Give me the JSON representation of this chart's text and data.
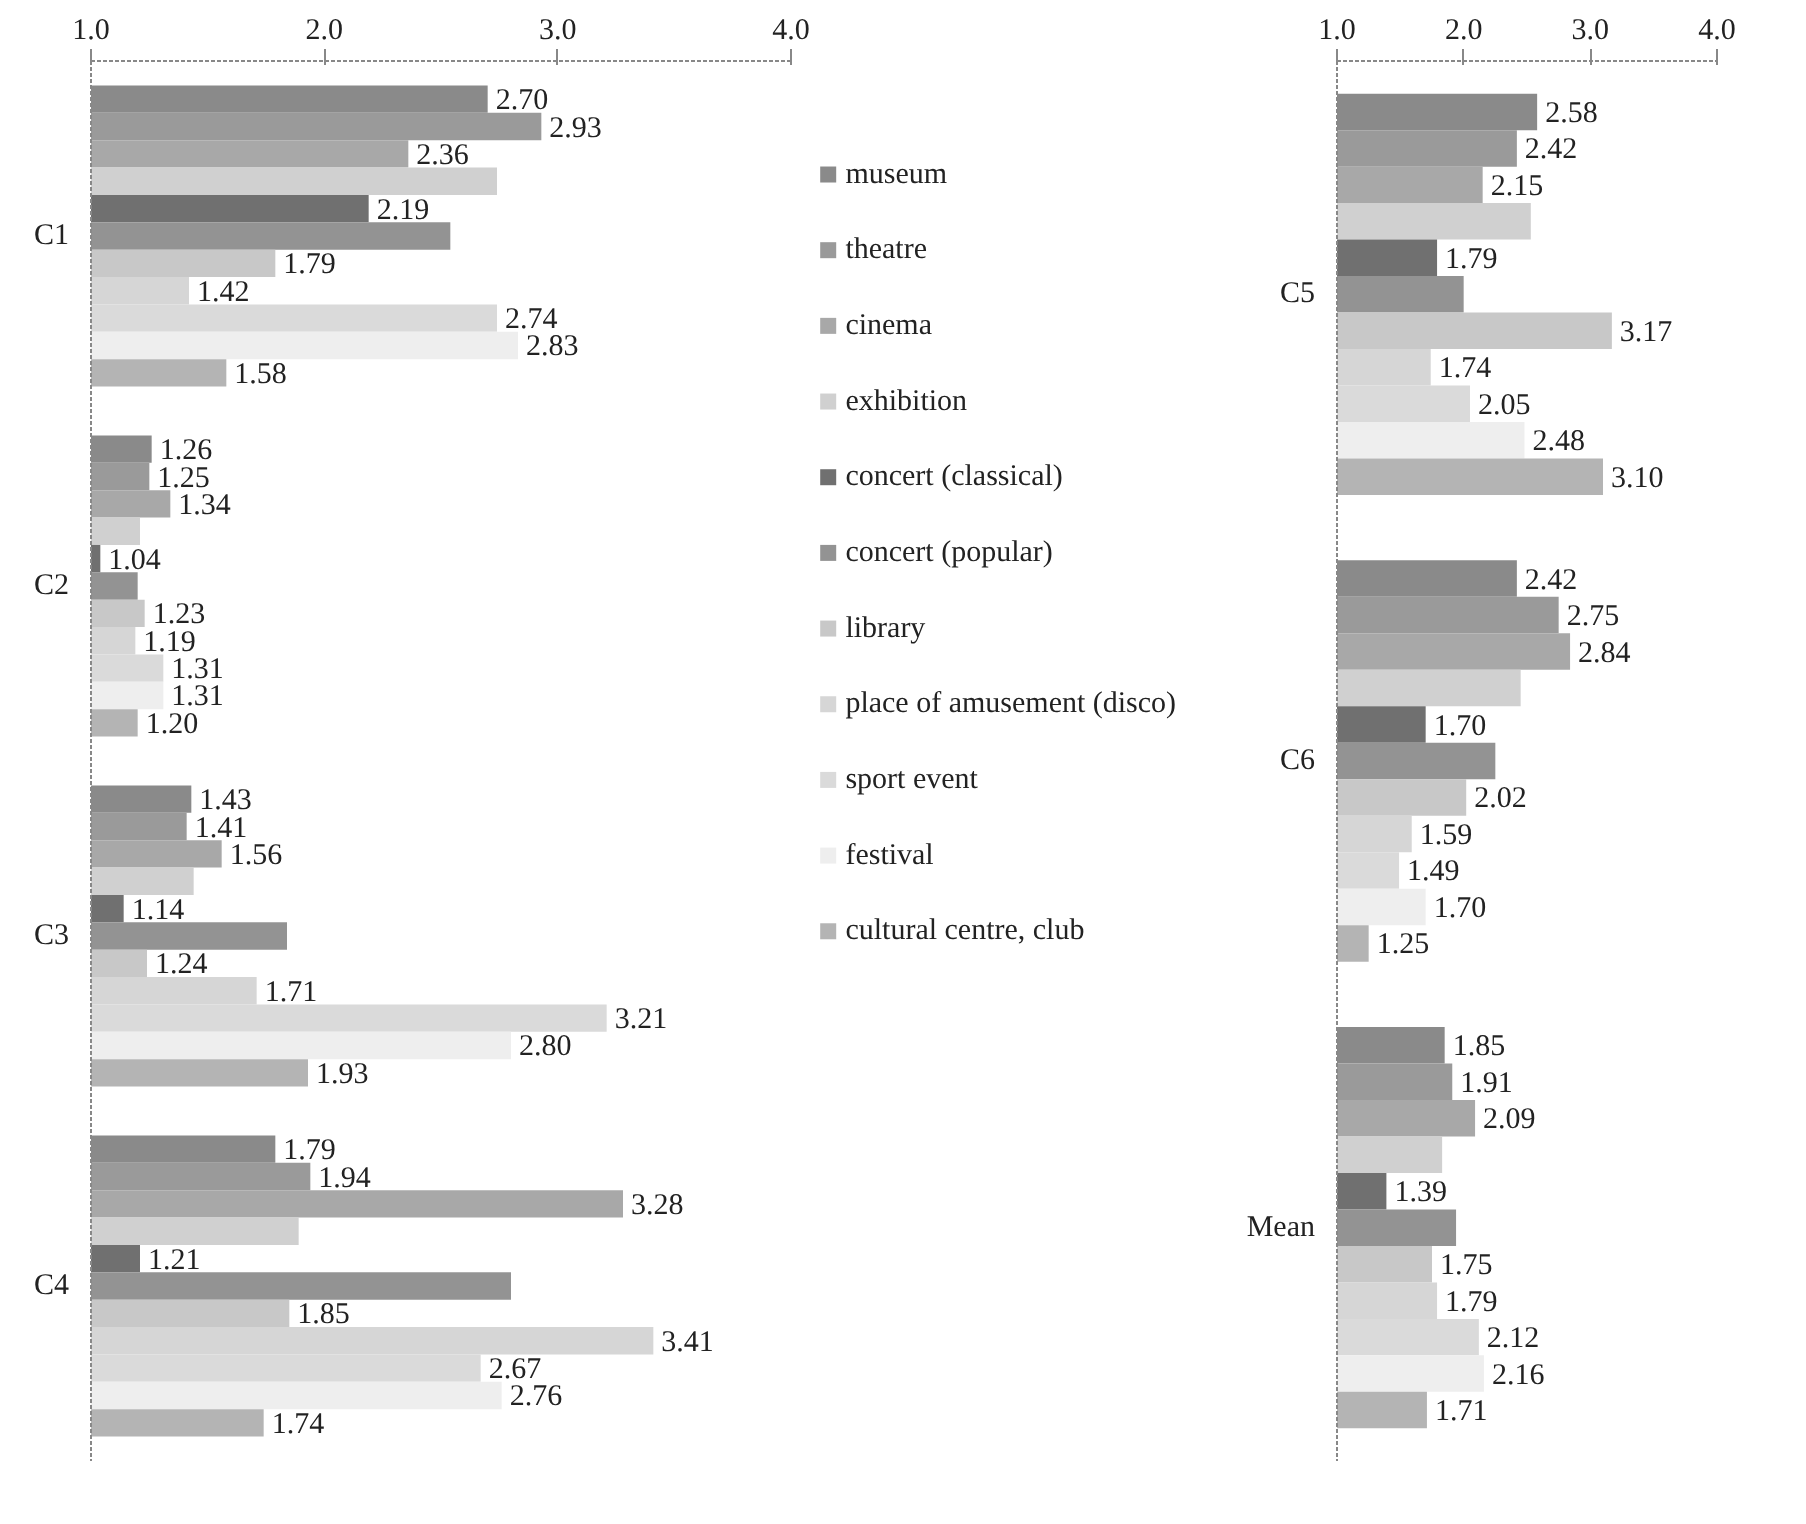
{
  "chart_data": [
    {
      "type": "bar",
      "orientation": "horizontal",
      "categories": [
        "C1",
        "C2",
        "C3",
        "C4"
      ],
      "xlim": [
        1.0,
        4.0
      ],
      "xticks": [
        {
          "value": 1.0,
          "label": "1.0"
        },
        {
          "value": 2.0,
          "label": "2.0"
        },
        {
          "value": 3.0,
          "label": "3.0"
        },
        {
          "value": 4.0,
          "label": "4.0"
        }
      ],
      "grid": false,
      "legend": "right",
      "series": [
        {
          "name": "museum",
          "color": "#8a8a8a",
          "values": [
            2.7,
            1.26,
            1.43,
            1.79
          ],
          "value_labels": [
            "2.70",
            "1.26",
            "1.43",
            "1.79"
          ]
        },
        {
          "name": "theatre",
          "color": "#9a9a9a",
          "values": [
            2.93,
            1.25,
            1.41,
            1.94
          ],
          "value_labels": [
            "2.93",
            "1.25",
            "1.41",
            "1.94"
          ]
        },
        {
          "name": "cinema",
          "color": "#a8a8a8",
          "values": [
            2.36,
            1.34,
            1.56,
            3.28
          ],
          "value_labels": [
            "2.36",
            "1.34",
            "1.56",
            "3.28"
          ]
        },
        {
          "name": "exhibition",
          "color": "#d0d0d0",
          "values": [
            2.74,
            1.21,
            1.44,
            1.89
          ],
          "value_labels": [
            null,
            null,
            null,
            null
          ]
        },
        {
          "name": "concert (classical)",
          "color": "#707070",
          "values": [
            2.19,
            1.04,
            1.14,
            1.21
          ],
          "value_labels": [
            "2.19",
            "1.04",
            "1.14",
            "1.21"
          ]
        },
        {
          "name": "concert (popular)",
          "color": "#939393",
          "values": [
            2.54,
            1.2,
            1.84,
            2.8
          ],
          "value_labels": [
            null,
            null,
            null,
            null
          ]
        },
        {
          "name": "library",
          "color": "#c8c8c8",
          "values": [
            1.79,
            1.23,
            1.24,
            1.85
          ],
          "value_labels": [
            "1.79",
            "1.23",
            "1.24",
            "1.85"
          ]
        },
        {
          "name": "place of amusement (disco)",
          "color": "#d6d6d6",
          "values": [
            1.42,
            1.19,
            1.71,
            3.41
          ],
          "value_labels": [
            "1.42",
            "1.19",
            "1.71",
            "3.41"
          ]
        },
        {
          "name": "sport event",
          "color": "#dadada",
          "values": [
            2.74,
            1.31,
            3.21,
            2.67
          ],
          "value_labels": [
            "2.74",
            "1.31",
            "3.21",
            "2.67"
          ]
        },
        {
          "name": "festival",
          "color": "#eeeeee",
          "values": [
            2.83,
            1.31,
            2.8,
            2.76
          ],
          "value_labels": [
            "2.83",
            "1.31",
            "2.80",
            "2.76"
          ]
        },
        {
          "name": "cultural centre, club",
          "color": "#b4b4b4",
          "values": [
            1.58,
            1.2,
            1.93,
            1.74
          ],
          "value_labels": [
            "1.58",
            "1.20",
            "1.93",
            "1.74"
          ]
        }
      ]
    },
    {
      "type": "bar",
      "orientation": "horizontal",
      "categories": [
        "C5",
        "C6",
        "Mean"
      ],
      "xlim": [
        1.0,
        4.0
      ],
      "xticks": [
        {
          "value": 1.0,
          "label": "1.0"
        },
        {
          "value": 2.0,
          "label": "2.0"
        },
        {
          "value": 3.0,
          "label": "3.0"
        },
        {
          "value": 4.0,
          "label": "4.0"
        }
      ],
      "grid": false,
      "series": [
        {
          "color": "#8a8a8a",
          "values": [
            2.58,
            2.42,
            1.85
          ],
          "value_labels": [
            "2.58",
            "2.42",
            "1.85"
          ]
        },
        {
          "color": "#9a9a9a",
          "values": [
            2.42,
            2.75,
            1.91
          ],
          "value_labels": [
            "2.42",
            "2.75",
            "1.91"
          ]
        },
        {
          "color": "#a8a8a8",
          "values": [
            2.15,
            2.84,
            2.09
          ],
          "value_labels": [
            "2.15",
            "2.84",
            "2.09"
          ]
        },
        {
          "color": "#d0d0d0",
          "values": [
            2.53,
            2.45,
            1.83
          ],
          "value_labels": [
            null,
            null,
            null
          ]
        },
        {
          "color": "#707070",
          "values": [
            1.79,
            1.7,
            1.39
          ],
          "value_labels": [
            "1.79",
            "1.70",
            "1.39"
          ]
        },
        {
          "color": "#939393",
          "values": [
            2.0,
            2.25,
            1.94
          ],
          "value_labels": [
            null,
            null,
            null
          ]
        },
        {
          "color": "#c8c8c8",
          "values": [
            3.17,
            2.02,
            1.75
          ],
          "value_labels": [
            "3.17",
            "2.02",
            "1.75"
          ]
        },
        {
          "color": "#d6d6d6",
          "values": [
            1.74,
            1.59,
            1.79
          ],
          "value_labels": [
            "1.74",
            "1.59",
            "1.79"
          ]
        },
        {
          "color": "#dadada",
          "values": [
            2.05,
            1.49,
            2.12
          ],
          "value_labels": [
            "2.05",
            "1.49",
            "2.12"
          ]
        },
        {
          "color": "#eeeeee",
          "values": [
            2.48,
            1.7,
            2.16
          ],
          "value_labels": [
            "2.48",
            "1.70",
            "2.16"
          ]
        },
        {
          "color": "#b4b4b4",
          "values": [
            3.1,
            1.25,
            1.71
          ],
          "value_labels": [
            "3.10",
            "1.25",
            "1.71"
          ]
        }
      ]
    }
  ]
}
